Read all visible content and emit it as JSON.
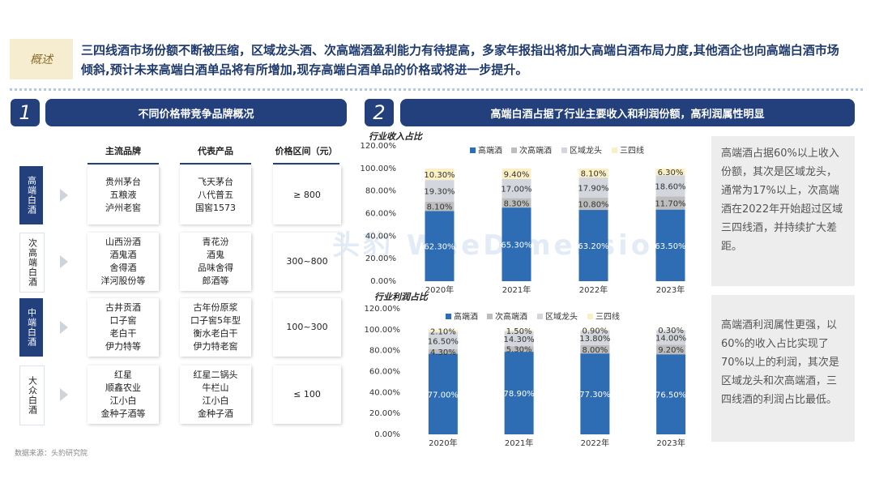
{
  "summary": {
    "tag": "概述",
    "text": "三四线酒市场份额不断被压缩，区域龙头酒、次高端酒盈利能力有待提高，多家年报指出将加大高端白酒布局力度,其他酒企也向高端白酒市场倾斜,预计未来高端白酒单品将有所增加,现存高端白酒单品的价格或将进一步提升。"
  },
  "section1": {
    "number": "1",
    "title": "不同价格带竞争品牌概况"
  },
  "section2": {
    "number": "2",
    "title": "高端白酒占据了行业主要收入和利润份额，高利润属性明显"
  },
  "brand_table": {
    "headers": {
      "brands": "主流品牌",
      "products": "代表产品",
      "price": "价格区间（元）"
    },
    "rows": [
      {
        "category": "高端白酒",
        "style": "dark",
        "brands": [
          "贵州茅台",
          "五粮液",
          "泸州老窖"
        ],
        "products": [
          "飞天茅台",
          "八代普五",
          "国窖1573"
        ],
        "price": "≥ 800"
      },
      {
        "category": "次高端白酒",
        "style": "light",
        "brands": [
          "山西汾酒",
          "酒鬼酒",
          "舍得酒",
          "洋河股份等"
        ],
        "products": [
          "青花汾",
          "酒鬼",
          "品味舍得",
          "郎酒等"
        ],
        "price": "300~800"
      },
      {
        "category": "中端白酒",
        "style": "dark",
        "brands": [
          "古井贡酒",
          "口子窖",
          "老白干",
          "伊力特等"
        ],
        "products": [
          "古年份原浆",
          "口子窖5年型",
          "衡水老白干",
          "伊力特老窖"
        ],
        "price": "100~300"
      },
      {
        "category": "大众白酒",
        "style": "light",
        "brands": [
          "红星",
          "顺鑫农业",
          "江小白",
          "金种子酒等"
        ],
        "products": [
          "红星二锅头",
          "牛栏山",
          "江小白",
          "金种子酒"
        ],
        "price": "≤ 100"
      }
    ]
  },
  "source": "数据来源：头豹研究院",
  "watermark": "头豹 WeeDimension",
  "colors": {
    "navy": "#23407c",
    "high": "#2e6db4",
    "sub": "#bdbdbd",
    "regional": "#d3d6dc",
    "lower": "#fbefc4"
  },
  "chart_data": [
    {
      "type": "bar",
      "stacked": true,
      "title": "行业收入占比",
      "categories": [
        "2020年",
        "2021年",
        "2022年",
        "2023年"
      ],
      "series": [
        {
          "name": "高端酒",
          "values": [
            62.3,
            65.3,
            63.2,
            63.5
          ],
          "labels": [
            "62.30%",
            "65.30%",
            "63.20%",
            "63.50%"
          ]
        },
        {
          "name": "次高端酒",
          "values": [
            8.1,
            8.3,
            10.8,
            11.7
          ],
          "labels": [
            "8.10%",
            "8.30%",
            "10.80%",
            "11.70%"
          ]
        },
        {
          "name": "区域龙头",
          "values": [
            19.3,
            17.0,
            17.9,
            18.6
          ],
          "labels": [
            "19.30%",
            "17.00%",
            "17.90%",
            "18.60%"
          ]
        },
        {
          "name": "三四线",
          "values": [
            10.3,
            9.4,
            8.1,
            6.3
          ],
          "labels": [
            "10.30%",
            "9.40%",
            "8.10%",
            "6.30%"
          ]
        }
      ],
      "ylim": [
        0,
        120
      ],
      "yticks": [
        "0.00%",
        "20.00%",
        "40.00%",
        "60.00%",
        "80.00%",
        "100.00%",
        "120.00%"
      ],
      "legend": "top"
    },
    {
      "type": "bar",
      "stacked": true,
      "title": "行业利润占比",
      "categories": [
        "2020年",
        "2021年",
        "2022年",
        "2023年"
      ],
      "series": [
        {
          "name": "高端酒",
          "values": [
            77.0,
            78.9,
            77.3,
            76.5
          ],
          "labels": [
            "77.00%",
            "78.90%",
            "77.30%",
            "76.50%"
          ]
        },
        {
          "name": "次高端酒",
          "values": [
            4.3,
            5.3,
            8.0,
            9.2
          ],
          "labels": [
            "4.30%",
            "5.30%",
            "8.00%",
            "9.20%"
          ]
        },
        {
          "name": "区域龙头",
          "values": [
            16.5,
            14.3,
            13.8,
            14.0
          ],
          "labels": [
            "16.50%",
            "14.30%",
            "13.80%",
            "14.00%"
          ]
        },
        {
          "name": "三四线",
          "values": [
            2.1,
            1.5,
            0.9,
            0.3
          ],
          "labels": [
            "2.10%",
            "1.50%",
            "0.90%",
            "0.30%"
          ]
        }
      ],
      "ylim": [
        0,
        120
      ],
      "yticks": [
        "0.00%",
        "20.00%",
        "40.00%",
        "60.00%",
        "80.00%",
        "100.00%",
        "120.00%"
      ],
      "legend": "top"
    }
  ],
  "notes": {
    "revenue": "高端酒占据60%以上收入份额，其次是区域龙头，通常为17%以上，次高端酒在2022年开始超过区域三四线酒，并持续扩大差距。",
    "profit": "高端酒利润属性更强，以60%的收入占比实现了70%以上的利润，其次是区域龙头和次高端酒，三四线酒的利润占比最低。"
  }
}
